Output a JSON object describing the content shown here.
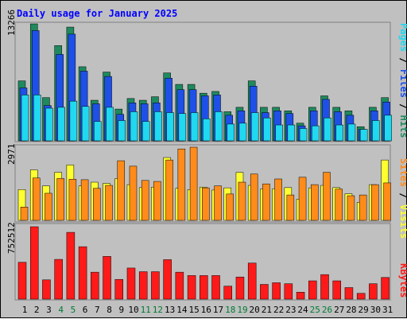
{
  "title": "Daily usage for January 2025",
  "colors": {
    "title": "#0000ff",
    "hits": "#1e8a5e",
    "files": "#1e50e8",
    "pages": "#20d8f0",
    "visits": "#ffff30",
    "sites": "#ff8c1a",
    "kbytes": "#ff1a1a",
    "weekend_label": "#007a33",
    "weekday_label": "#000000"
  },
  "chart_data": [
    {
      "type": "bar",
      "panel": "pages-files-hits",
      "ymax_label": "13266",
      "ylim": [
        0,
        13266
      ],
      "legend": [
        {
          "key": "pages",
          "label": "Pages"
        },
        {
          "key": "sep1",
          "label": " / "
        },
        {
          "key": "files",
          "label": "Files"
        },
        {
          "key": "sep2",
          "label": " / "
        },
        {
          "key": "hits",
          "label": "Hits"
        }
      ],
      "categories": [
        "1",
        "2",
        "3",
        "4",
        "5",
        "6",
        "7",
        "8",
        "9",
        "10",
        "11",
        "12",
        "13",
        "14",
        "15",
        "16",
        "17",
        "18",
        "19",
        "20",
        "21",
        "22",
        "23",
        "24",
        "25",
        "26",
        "27",
        "28",
        "29",
        "30",
        "31"
      ],
      "weekend_days": [
        "4",
        "5",
        "11",
        "12",
        "18",
        "19",
        "25",
        "26"
      ],
      "series": [
        {
          "name": "Hits",
          "values": [
            6800,
            13266,
            4900,
            10800,
            12900,
            8400,
            4600,
            7800,
            3600,
            4800,
            4600,
            5000,
            7700,
            6400,
            6400,
            5400,
            5600,
            3300,
            3800,
            6800,
            3800,
            3800,
            3400,
            2000,
            3800,
            5100,
            3800,
            3400,
            1600,
            3800,
            4900
          ]
        },
        {
          "name": "Files",
          "values": [
            6000,
            12500,
            4000,
            9800,
            12100,
            7900,
            4200,
            7300,
            3000,
            4300,
            4200,
            4300,
            7100,
            5800,
            5800,
            5100,
            5200,
            2900,
            3400,
            6200,
            3200,
            3400,
            3100,
            1700,
            3400,
            4700,
            3300,
            2900,
            1300,
            3400,
            4400
          ]
        },
        {
          "name": "Pages",
          "values": [
            5200,
            5200,
            3700,
            3800,
            4500,
            3900,
            2200,
            3800,
            2300,
            3300,
            2200,
            3300,
            3200,
            3100,
            3200,
            2500,
            3300,
            1900,
            2000,
            3200,
            2600,
            1800,
            1800,
            1400,
            1700,
            2600,
            1800,
            1900,
            1300,
            2300,
            2900
          ]
        }
      ]
    },
    {
      "type": "bar",
      "panel": "sites-visits",
      "ymax_label": "2971",
      "ylim": [
        0,
        2971
      ],
      "legend": [
        {
          "key": "sites",
          "label": "Sites"
        },
        {
          "key": "sep1",
          "label": " / "
        },
        {
          "key": "visits",
          "label": "Visits"
        }
      ],
      "categories": [
        "1",
        "2",
        "3",
        "4",
        "5",
        "6",
        "7",
        "8",
        "9",
        "10",
        "11",
        "12",
        "13",
        "14",
        "15",
        "16",
        "17",
        "18",
        "19",
        "20",
        "21",
        "22",
        "23",
        "24",
        "25",
        "26",
        "27",
        "28",
        "29",
        "30",
        "31"
      ],
      "weekend_days": [
        "4",
        "5",
        "11",
        "12",
        "18",
        "19",
        "25",
        "26"
      ],
      "series": [
        {
          "name": "Visits",
          "values": [
            1250,
            2050,
            1400,
            1950,
            2250,
            1400,
            1550,
            1500,
            1700,
            1450,
            1330,
            1350,
            2550,
            1300,
            1250,
            1350,
            1230,
            1320,
            1950,
            1420,
            1270,
            1280,
            1330,
            860,
            1320,
            1420,
            1330,
            1080,
            730,
            1450,
            2450
          ]
        },
        {
          "name": "Sites",
          "values": [
            540,
            1720,
            1100,
            1700,
            1670,
            1650,
            1300,
            1420,
            2420,
            2200,
            1620,
            1580,
            2450,
            2900,
            2970,
            1320,
            1400,
            1070,
            1550,
            1880,
            1480,
            1680,
            1030,
            1750,
            1450,
            1950,
            1270,
            1000,
            1030,
            1450,
            1520
          ]
        }
      ]
    },
    {
      "type": "bar",
      "panel": "kbytes",
      "ymax_label": "752512",
      "ylim": [
        0,
        752512
      ],
      "legend": [
        {
          "key": "kbytes",
          "label": "KBytes"
        }
      ],
      "categories": [
        "1",
        "2",
        "3",
        "4",
        "5",
        "6",
        "7",
        "8",
        "9",
        "10",
        "11",
        "12",
        "13",
        "14",
        "15",
        "16",
        "17",
        "18",
        "19",
        "20",
        "21",
        "22",
        "23",
        "24",
        "25",
        "26",
        "27",
        "28",
        "29",
        "30",
        "31"
      ],
      "weekend_days": [
        "4",
        "5",
        "11",
        "12",
        "18",
        "19",
        "25",
        "26"
      ],
      "series": [
        {
          "name": "KBytes",
          "values": [
            383000,
            752512,
            200000,
            413000,
            694000,
            545000,
            280000,
            444000,
            205000,
            323000,
            285000,
            285000,
            410000,
            280000,
            245000,
            245000,
            245000,
            135000,
            230000,
            375000,
            153000,
            170000,
            160000,
            72000,
            190000,
            255000,
            190000,
            120000,
            60000,
            160000,
            225000
          ]
        }
      ]
    }
  ]
}
